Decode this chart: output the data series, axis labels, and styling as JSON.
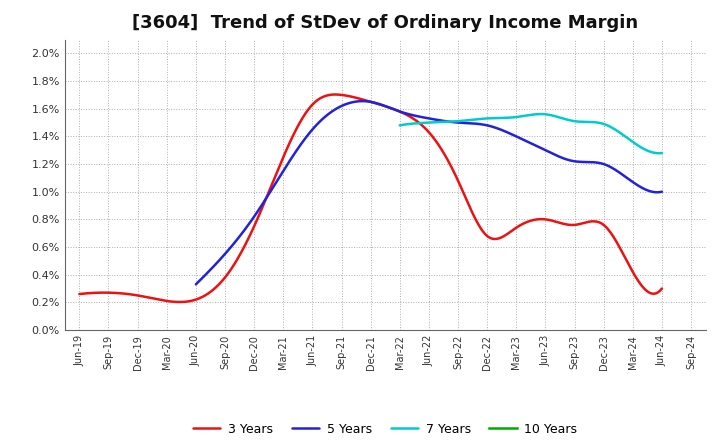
{
  "title": "[3604]  Trend of StDev of Ordinary Income Margin",
  "title_fontsize": 13,
  "background_color": "#ffffff",
  "plot_bg_color": "#ffffff",
  "grid_color": "#999999",
  "ylim": [
    0.0,
    0.021
  ],
  "yticks": [
    0.0,
    0.002,
    0.004,
    0.006,
    0.008,
    0.01,
    0.012,
    0.014,
    0.016,
    0.018,
    0.02
  ],
  "ytick_labels": [
    "0.0%",
    "0.2%",
    "0.4%",
    "0.6%",
    "0.8%",
    "1.0%",
    "1.2%",
    "1.4%",
    "1.6%",
    "1.8%",
    "2.0%"
  ],
  "x_labels": [
    "Jun-19",
    "Sep-19",
    "Dec-19",
    "Mar-20",
    "Jun-20",
    "Sep-20",
    "Dec-20",
    "Mar-21",
    "Jun-21",
    "Sep-21",
    "Dec-21",
    "Mar-22",
    "Jun-22",
    "Sep-22",
    "Dec-22",
    "Mar-23",
    "Jun-23",
    "Sep-23",
    "Dec-23",
    "Mar-24",
    "Jun-24",
    "Sep-24"
  ],
  "series": {
    "3 Years": {
      "color": "#ee1111",
      "linewidth": 1.8,
      "values": [
        0.0026,
        0.0027,
        0.0025,
        0.0021,
        0.0022,
        0.0038,
        0.0075,
        0.0125,
        0.0163,
        0.017,
        0.0165,
        0.0158,
        0.0143,
        0.0108,
        0.0068,
        0.0074,
        0.008,
        0.0076,
        0.0076,
        0.0042,
        0.003,
        null
      ]
    },
    "5 Years": {
      "color": "#2222dd",
      "linewidth": 1.8,
      "values": [
        null,
        null,
        null,
        null,
        0.0033,
        0.0055,
        0.0082,
        0.0115,
        0.0145,
        0.0162,
        0.0165,
        0.0158,
        0.0153,
        0.015,
        0.0148,
        0.014,
        0.013,
        0.0122,
        0.012,
        0.0107,
        0.01,
        null
      ]
    },
    "7 Years": {
      "color": "#00cccc",
      "linewidth": 1.8,
      "values": [
        null,
        null,
        null,
        null,
        null,
        null,
        null,
        null,
        null,
        null,
        null,
        0.0148,
        0.015,
        0.0151,
        0.0153,
        0.0154,
        0.0156,
        0.0151,
        0.0149,
        0.0136,
        0.0128,
        null
      ]
    },
    "10 Years": {
      "color": "#00aa00",
      "linewidth": 1.8,
      "values": [
        null,
        null,
        null,
        null,
        null,
        null,
        null,
        null,
        null,
        null,
        null,
        null,
        null,
        null,
        null,
        null,
        null,
        null,
        null,
        null,
        null,
        null
      ]
    }
  },
  "legend_ncol": 4
}
